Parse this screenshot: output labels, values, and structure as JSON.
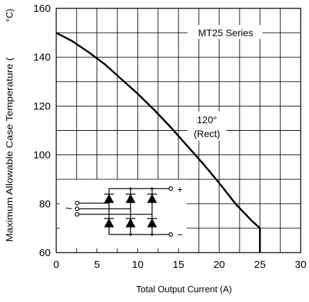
{
  "chart_data": {
    "type": "line",
    "title": "",
    "xlabel": "Total Output Current (A)",
    "ylabel": "Maximum Allowable Case Temperature (",
    "ylabel_unit": "°C)",
    "xlim": [
      0,
      30
    ],
    "ylim": [
      60,
      160
    ],
    "x_ticks": [
      0,
      5,
      10,
      15,
      20,
      25,
      30
    ],
    "y_ticks": [
      60,
      80,
      100,
      120,
      140,
      160
    ],
    "grid": true,
    "series": [
      {
        "name": "120° (Rect)",
        "color": "#000000",
        "x": [
          0,
          2,
          4,
          6,
          8,
          10,
          12,
          14,
          16,
          18,
          20,
          22,
          24,
          25,
          25
        ],
        "y": [
          150,
          146.5,
          142,
          137,
          131,
          125,
          118.5,
          111.5,
          104,
          96.5,
          88.5,
          80,
          73,
          70,
          60
        ]
      }
    ],
    "annotations": {
      "series_label": "MT25 Series",
      "curve_label_line1": "120°",
      "curve_label_line2": "(Rect)",
      "plus_sign": "+",
      "minus_sign": "−",
      "ac_symbol": "~"
    }
  }
}
